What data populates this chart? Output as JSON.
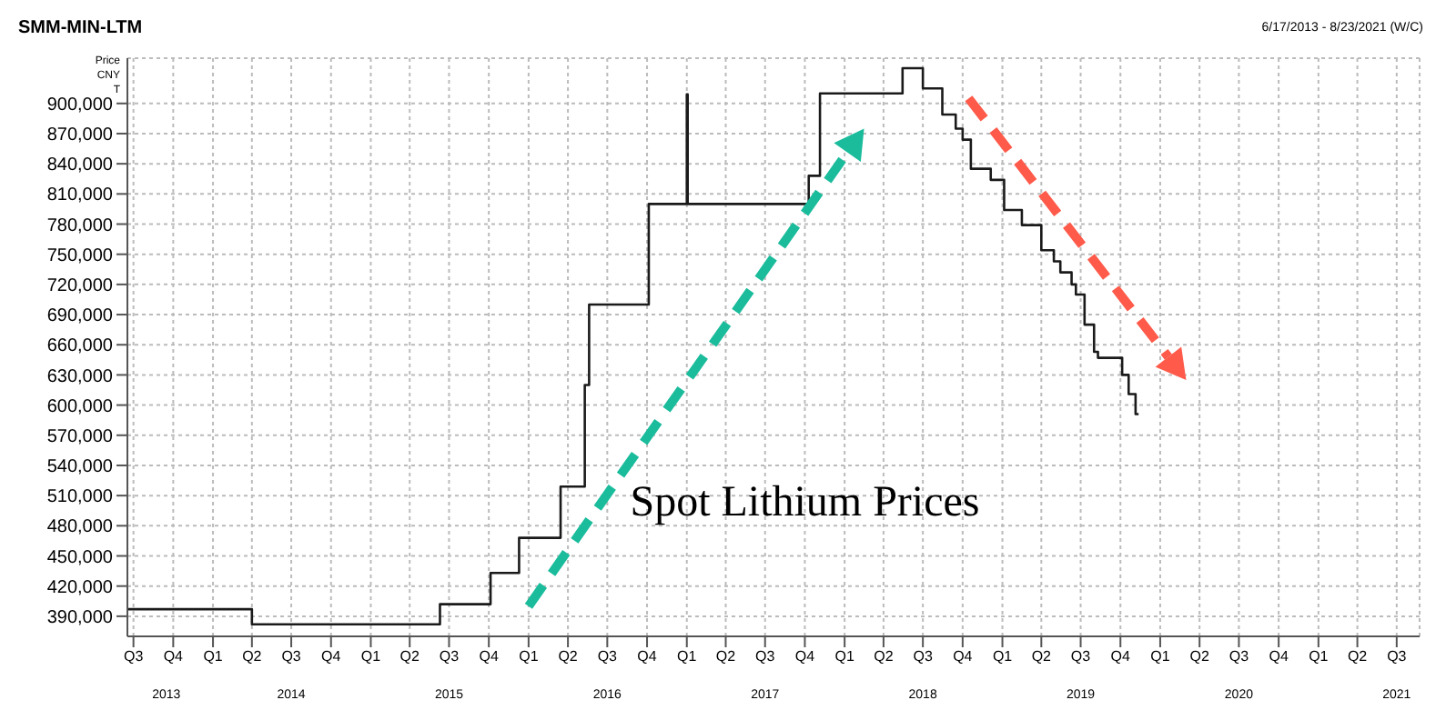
{
  "chart_data": {
    "type": "step",
    "title": "SMM-MIN-LTM",
    "subtitle": "6/17/2013 - 8/23/2021 (W/C)",
    "ylabel": "Price CNY T",
    "x": [
      "2013-06-17",
      "2014-04-01",
      "2015-06-10",
      "2015-10-05",
      "2015-12-10",
      "2016-03-15",
      "2016-05-10",
      "2016-05-20",
      "2016-10-05",
      "2017-01-01",
      "2017-01-03",
      "2017-10-10",
      "2017-11-05",
      "2018-05-15",
      "2018-07-01",
      "2018-08-15",
      "2018-09-15",
      "2018-10-01",
      "2018-10-20",
      "2018-12-05",
      "2019-01-05",
      "2019-02-15",
      "2019-04-01",
      "2019-04-30",
      "2019-05-15",
      "2019-06-10",
      "2019-06-20",
      "2019-07-10",
      "2019-08-01",
      "2019-08-10",
      "2019-10-05",
      "2019-10-20",
      "2019-11-05",
      "2019-11-12"
    ],
    "series": [
      {
        "color": "#1a1a1a",
        "values": [
          397000,
          382000,
          402000,
          433000,
          468000,
          519000,
          620000,
          700000,
          800000,
          909000,
          800000,
          828000,
          910000,
          935000,
          915000,
          889000,
          875000,
          864000,
          835000,
          824000,
          794000,
          779000,
          754000,
          743000,
          732000,
          720000,
          710000,
          680000,
          653000,
          647000,
          630000,
          611000,
          591000,
          591000
        ]
      }
    ],
    "xlim": [
      "2013-06-17",
      "2021-08-23"
    ],
    "xticks": [
      {
        "value": "2013-07-01",
        "label": "Q3"
      },
      {
        "value": "2013-10-01",
        "label": "Q4"
      },
      {
        "value": "2014-01-01",
        "label": "Q1"
      },
      {
        "value": "2014-04-01",
        "label": "Q2"
      },
      {
        "value": "2014-07-01",
        "label": "Q3"
      },
      {
        "value": "2014-10-01",
        "label": "Q4"
      },
      {
        "value": "2015-01-01",
        "label": "Q1"
      },
      {
        "value": "2015-04-01",
        "label": "Q2"
      },
      {
        "value": "2015-07-01",
        "label": "Q3"
      },
      {
        "value": "2015-10-01",
        "label": "Q4"
      },
      {
        "value": "2016-01-01",
        "label": "Q1"
      },
      {
        "value": "2016-04-01",
        "label": "Q2"
      },
      {
        "value": "2016-07-01",
        "label": "Q3"
      },
      {
        "value": "2016-10-01",
        "label": "Q4"
      },
      {
        "value": "2017-01-01",
        "label": "Q1"
      },
      {
        "value": "2017-04-01",
        "label": "Q2"
      },
      {
        "value": "2017-07-01",
        "label": "Q3"
      },
      {
        "value": "2017-10-01",
        "label": "Q4"
      },
      {
        "value": "2018-01-01",
        "label": "Q1"
      },
      {
        "value": "2018-04-01",
        "label": "Q2"
      },
      {
        "value": "2018-07-01",
        "label": "Q3"
      },
      {
        "value": "2018-10-01",
        "label": "Q4"
      },
      {
        "value": "2019-01-01",
        "label": "Q1"
      },
      {
        "value": "2019-04-01",
        "label": "Q2"
      },
      {
        "value": "2019-07-01",
        "label": "Q3"
      },
      {
        "value": "2019-10-01",
        "label": "Q4"
      },
      {
        "value": "2020-01-01",
        "label": "Q1"
      },
      {
        "value": "2020-04-01",
        "label": "Q2"
      },
      {
        "value": "2020-07-01",
        "label": "Q3"
      },
      {
        "value": "2020-10-01",
        "label": "Q4"
      },
      {
        "value": "2021-01-01",
        "label": "Q1"
      },
      {
        "value": "2021-04-01",
        "label": "Q2"
      },
      {
        "value": "2021-07-01",
        "label": "Q3"
      }
    ],
    "ylim": [
      370000,
      945000
    ],
    "yticks": [
      {
        "value": 390000,
        "label": "390,000"
      },
      {
        "value": 420000,
        "label": "420,000"
      },
      {
        "value": 450000,
        "label": "450,000"
      },
      {
        "value": 480000,
        "label": "480,000"
      },
      {
        "value": 510000,
        "label": "510,000"
      },
      {
        "value": 540000,
        "label": "540,000"
      },
      {
        "value": 570000,
        "label": "570,000"
      },
      {
        "value": 600000,
        "label": "600,000"
      },
      {
        "value": 630000,
        "label": "630,000"
      },
      {
        "value": 660000,
        "label": "660,000"
      },
      {
        "value": 690000,
        "label": "690,000"
      },
      {
        "value": 720000,
        "label": "720,000"
      },
      {
        "value": 750000,
        "label": "750,000"
      },
      {
        "value": 780000,
        "label": "780,000"
      },
      {
        "value": 810000,
        "label": "810,000"
      },
      {
        "value": 840000,
        "label": "840,000"
      },
      {
        "value": 870000,
        "label": "870,000"
      },
      {
        "value": 900000,
        "label": "900,000"
      }
    ],
    "annotations": [
      "Spot Lithium Prices",
      "2013",
      "2014",
      "2015",
      "2016",
      "2017",
      "2018",
      "2019",
      "2020",
      "2021"
    ],
    "grid": true,
    "line_style": "solid",
    "marker": "none"
  }
}
